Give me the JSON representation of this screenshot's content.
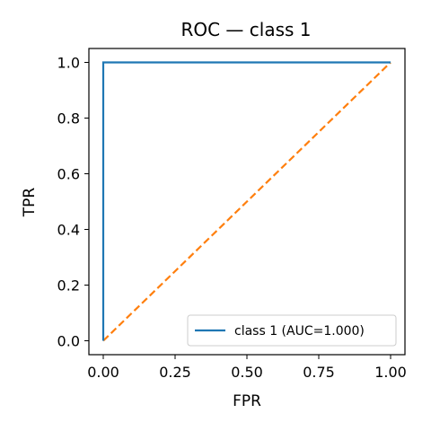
{
  "chart_data": {
    "type": "line",
    "title": "ROC — class 1",
    "xlabel": "FPR",
    "ylabel": "TPR",
    "xlim": [
      -0.05,
      1.05
    ],
    "ylim": [
      -0.05,
      1.05
    ],
    "xticks": [
      0.0,
      0.25,
      0.5,
      0.75,
      1.0
    ],
    "xtick_labels": [
      "0.00",
      "0.25",
      "0.50",
      "0.75",
      "1.00"
    ],
    "yticks": [
      0.0,
      0.2,
      0.4,
      0.6,
      0.8,
      1.0
    ],
    "ytick_labels": [
      "0.0",
      "0.2",
      "0.4",
      "0.6",
      "0.8",
      "1.0"
    ],
    "grid": false,
    "legend": {
      "placement": "lower-right"
    },
    "series": [
      {
        "name": "class 1 (AUC=1.000)",
        "color": "#1f77b4",
        "dash": "solid",
        "x": [
          0.0,
          0.0,
          1.0
        ],
        "y": [
          0.0,
          1.0,
          1.0
        ]
      },
      {
        "color": "#ff7f0e",
        "dash": "dashed",
        "x": [
          0.0,
          1.0
        ],
        "y": [
          0.0,
          1.0
        ]
      }
    ]
  }
}
